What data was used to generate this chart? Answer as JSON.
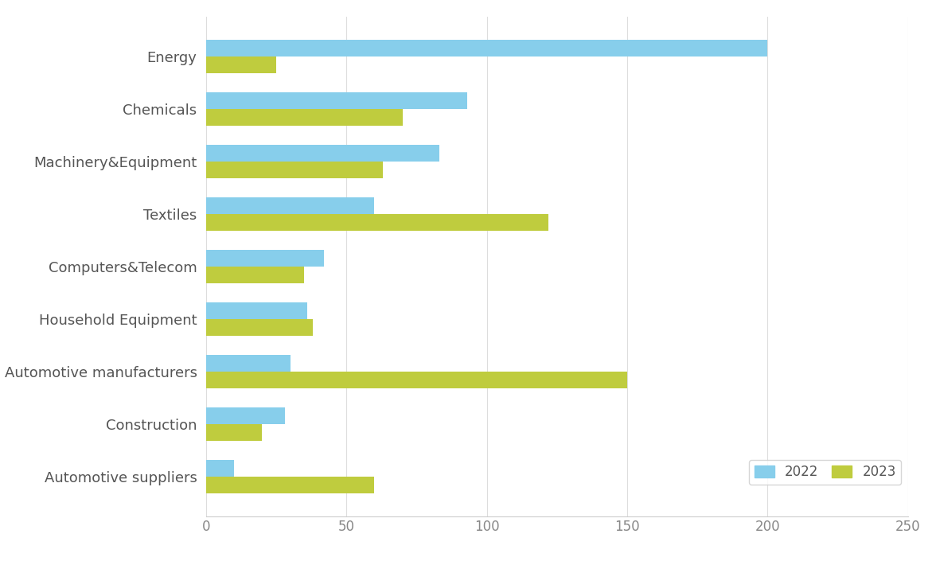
{
  "categories": [
    "Energy",
    "Chemicals",
    "Machinery&Equipment",
    "Textiles",
    "Computers&Telecom",
    "Household Equipment",
    "Automotive manufacturers",
    "Construction",
    "Automotive suppliers"
  ],
  "values_2022": [
    200,
    93,
    83,
    60,
    42,
    36,
    30,
    28,
    10
  ],
  "values_2023": [
    25,
    70,
    63,
    122,
    35,
    38,
    150,
    20,
    60
  ],
  "color_2022": "#87CEEB",
  "color_2023": "#BFCC3E",
  "xlim": [
    0,
    250
  ],
  "xticks": [
    0,
    50,
    100,
    150,
    200,
    250
  ],
  "legend_labels": [
    "2022",
    "2023"
  ],
  "background_color": "#FFFFFF",
  "bar_height": 0.32
}
